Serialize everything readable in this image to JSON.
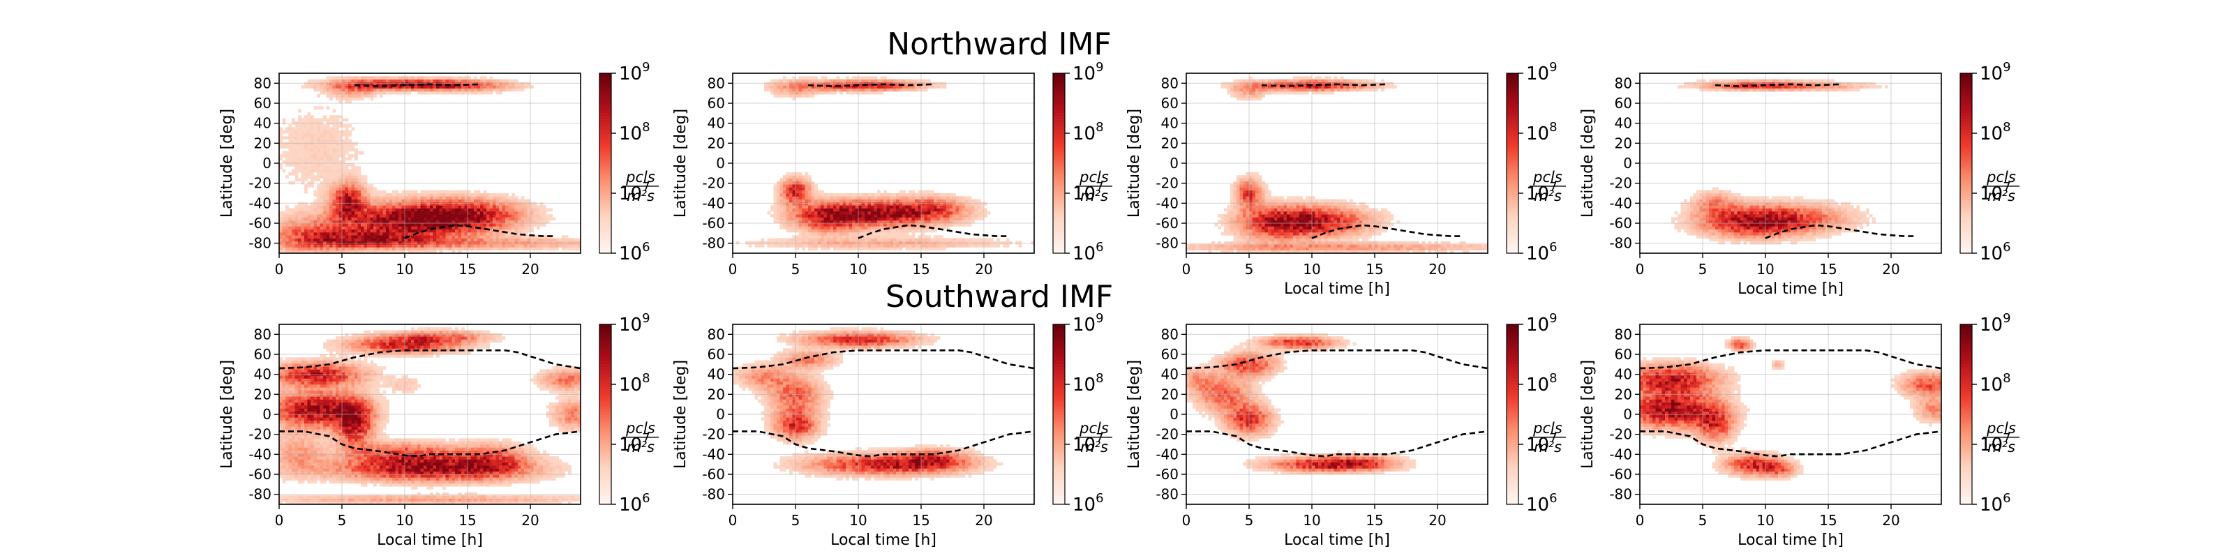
{
  "figure": {
    "row_titles": [
      "Northward IMF",
      "Southward IMF"
    ]
  },
  "chart_data": {
    "type": "heatmap",
    "panel_grid": [
      2,
      4
    ],
    "xlabel": "Local time [h]",
    "ylabel": "Latitude [deg]",
    "xlim": [
      0,
      24
    ],
    "ylim": [
      -90,
      90
    ],
    "xticks": [
      0,
      5,
      10,
      15,
      20
    ],
    "yticks": [
      -80,
      -60,
      -40,
      -20,
      0,
      20,
      40,
      60,
      80
    ],
    "xlabel_shown": [
      [
        false,
        false,
        true,
        true
      ],
      [
        true,
        true,
        true,
        true
      ]
    ],
    "grid": true,
    "colormap": "Reds",
    "colorbar": {
      "scale": "log",
      "range": [
        1000000,
        1000000000
      ],
      "tick_labels": [
        {
          "base": "10",
          "exp": "6"
        },
        {
          "base": "10",
          "exp": "7"
        },
        {
          "base": "10",
          "exp": "8"
        },
        {
          "base": "10",
          "exp": "9"
        }
      ],
      "unit_numerator": "pcls",
      "unit_denominator": "m²s"
    },
    "boundaries": {
      "north_cusp": [
        [
          6,
          78
        ],
        [
          8,
          77
        ],
        [
          10,
          78
        ],
        [
          12,
          79
        ],
        [
          14,
          78
        ],
        [
          16,
          79
        ]
      ],
      "south_cusp": [
        [
          10,
          -75
        ],
        [
          11,
          -70
        ],
        [
          12,
          -66
        ],
        [
          14,
          -62
        ],
        [
          15,
          -63
        ],
        [
          17,
          -67
        ],
        [
          19,
          -71
        ],
        [
          21,
          -73
        ],
        [
          22,
          -73
        ]
      ],
      "north_boundary": [
        [
          0,
          46
        ],
        [
          2,
          47
        ],
        [
          4,
          50
        ],
        [
          6,
          57
        ],
        [
          8,
          62
        ],
        [
          10,
          64
        ],
        [
          12,
          64
        ],
        [
          14,
          64
        ],
        [
          16,
          64
        ],
        [
          18,
          64
        ],
        [
          19,
          62
        ],
        [
          20,
          58
        ],
        [
          22,
          50
        ],
        [
          24,
          46
        ]
      ],
      "south_boundary": [
        [
          0,
          -17
        ],
        [
          2,
          -17
        ],
        [
          4,
          -22
        ],
        [
          5,
          -30
        ],
        [
          6,
          -34
        ],
        [
          8,
          -37
        ],
        [
          10,
          -41
        ],
        [
          11,
          -42
        ],
        [
          12,
          -40
        ],
        [
          14,
          -40
        ],
        [
          16,
          -40
        ],
        [
          18,
          -36
        ],
        [
          19,
          -32
        ],
        [
          20,
          -28
        ],
        [
          21,
          -24
        ],
        [
          22,
          -20
        ],
        [
          24,
          -17
        ]
      ]
    },
    "panels": [
      {
        "row": 0,
        "col": 0,
        "boundary_set": "cusp",
        "blobs": [
          {
            "lt": 10.5,
            "lat": 79,
            "slt": 3.5,
            "slat": 3.5,
            "amp": 0.9
          },
          {
            "lt": 6,
            "lat": 75,
            "slt": 1.5,
            "slat": 6,
            "amp": 0.35
          },
          {
            "lt": 15,
            "lat": 77,
            "slt": 3,
            "slat": 4,
            "amp": 0.3
          },
          {
            "lt": 11,
            "lat": -57,
            "slt": 4,
            "slat": 12,
            "amp": 1.0
          },
          {
            "lt": 5.5,
            "lat": -38,
            "slt": 0.9,
            "slat": 12,
            "amp": 0.8
          },
          {
            "lt": 7,
            "lat": -75,
            "slt": 3,
            "slat": 6,
            "amp": 0.6
          },
          {
            "lt": 15,
            "lat": -50,
            "slt": 3,
            "slat": 10,
            "amp": 0.55
          },
          {
            "lt": 14,
            "lat": -80,
            "slt": 9,
            "slat": 4,
            "amp": 0.35
          },
          {
            "lt": 2.5,
            "lat": -72,
            "slt": 2.5,
            "slat": 12,
            "amp": 0.45
          },
          {
            "lt": 3,
            "lat": 15,
            "slt": 3,
            "slat": 35,
            "amp": 0.12
          }
        ]
      },
      {
        "row": 0,
        "col": 1,
        "boundary_set": "cusp",
        "blobs": [
          {
            "lt": 10.5,
            "lat": 78,
            "slt": 3,
            "slat": 3.5,
            "amp": 0.8
          },
          {
            "lt": 5,
            "lat": 75,
            "slt": 1.5,
            "slat": 6,
            "amp": 0.3
          },
          {
            "lt": 11.5,
            "lat": -50,
            "slt": 3.5,
            "slat": 9,
            "amp": 0.95
          },
          {
            "lt": 5,
            "lat": -28,
            "slt": 0.8,
            "slat": 9,
            "amp": 0.75
          },
          {
            "lt": 7.5,
            "lat": -55,
            "slt": 1.8,
            "slat": 10,
            "amp": 0.55
          },
          {
            "lt": 12,
            "lat": -80,
            "slt": 7,
            "slat": 4,
            "amp": 0.25
          },
          {
            "lt": 16,
            "lat": -45,
            "slt": 2,
            "slat": 8,
            "amp": 0.4
          }
        ]
      },
      {
        "row": 0,
        "col": 2,
        "boundary_set": "cusp",
        "blobs": [
          {
            "lt": 10,
            "lat": 78,
            "slt": 3,
            "slat": 3.5,
            "amp": 0.8
          },
          {
            "lt": 5,
            "lat": 73,
            "slt": 1,
            "slat": 6,
            "amp": 0.3
          },
          {
            "lt": 10,
            "lat": -58,
            "slt": 3,
            "slat": 10,
            "amp": 0.85
          },
          {
            "lt": 5,
            "lat": -30,
            "slt": 0.7,
            "slat": 10,
            "amp": 0.65
          },
          {
            "lt": 7,
            "lat": -60,
            "slt": 2,
            "slat": 12,
            "amp": 0.45
          },
          {
            "lt": 12,
            "lat": -84,
            "slt": 9,
            "slat": 3,
            "amp": 0.35
          }
        ]
      },
      {
        "row": 0,
        "col": 3,
        "boundary_set": "cusp",
        "blobs": [
          {
            "lt": 9.5,
            "lat": 78,
            "slt": 3,
            "slat": 3,
            "amp": 0.7
          },
          {
            "lt": 15,
            "lat": 77,
            "slt": 3,
            "slat": 3,
            "amp": 0.2
          },
          {
            "lt": 9,
            "lat": -58,
            "slt": 2.8,
            "slat": 10,
            "amp": 0.9
          },
          {
            "lt": 6,
            "lat": -40,
            "slt": 1.2,
            "slat": 8,
            "amp": 0.35
          },
          {
            "lt": 13,
            "lat": -55,
            "slt": 3,
            "slat": 10,
            "amp": 0.35
          }
        ]
      },
      {
        "row": 1,
        "col": 0,
        "boundary_set": "oval",
        "blobs": [
          {
            "lt": 3,
            "lat": 40,
            "slt": 2.5,
            "slat": 8,
            "amp": 0.8
          },
          {
            "lt": 3,
            "lat": 5,
            "slt": 2.5,
            "slat": 12,
            "amp": 0.95
          },
          {
            "lt": 6,
            "lat": -10,
            "slt": 1,
            "slat": 15,
            "amp": 0.8
          },
          {
            "lt": 10,
            "lat": 70,
            "slt": 3,
            "slat": 6,
            "amp": 0.75
          },
          {
            "lt": 13,
            "lat": 78,
            "slt": 2.5,
            "slat": 4,
            "amp": 0.45
          },
          {
            "lt": 10,
            "lat": -40,
            "slt": 3,
            "slat": 8,
            "amp": 0.6
          },
          {
            "lt": 12,
            "lat": -55,
            "slt": 5,
            "slat": 8,
            "amp": 0.85
          },
          {
            "lt": 17,
            "lat": -45,
            "slt": 2,
            "slat": 10,
            "amp": 0.55
          },
          {
            "lt": 23,
            "lat": 35,
            "slt": 1.5,
            "slat": 7,
            "amp": 0.45
          },
          {
            "lt": 23.5,
            "lat": 0,
            "slt": 1.2,
            "slat": 10,
            "amp": 0.4
          },
          {
            "lt": 12,
            "lat": -85,
            "slt": 9,
            "slat": 3,
            "amp": 0.3
          },
          {
            "lt": 10,
            "lat": 30,
            "slt": 1,
            "slat": 6,
            "amp": 0.15
          },
          {
            "lt": 1.5,
            "lat": -40,
            "slt": 1.5,
            "slat": 15,
            "amp": 0.3
          }
        ]
      },
      {
        "row": 1,
        "col": 1,
        "boundary_set": "oval",
        "blobs": [
          {
            "lt": 10,
            "lat": 75,
            "slt": 3,
            "slat": 5,
            "amp": 0.75
          },
          {
            "lt": 5,
            "lat": 20,
            "slt": 1.5,
            "slat": 12,
            "amp": 0.5
          },
          {
            "lt": 5,
            "lat": -10,
            "slt": 1.2,
            "slat": 10,
            "amp": 0.7
          },
          {
            "lt": 12,
            "lat": -50,
            "slt": 4,
            "slat": 7,
            "amp": 0.75
          },
          {
            "lt": 16,
            "lat": -45,
            "slt": 2,
            "slat": 7,
            "amp": 0.5
          },
          {
            "lt": 2.5,
            "lat": 38,
            "slt": 1.5,
            "slat": 8,
            "amp": 0.35
          },
          {
            "lt": 6,
            "lat": 55,
            "slt": 1.5,
            "slat": 6,
            "amp": 0.4
          }
        ]
      },
      {
        "row": 1,
        "col": 2,
        "boundary_set": "oval",
        "blobs": [
          {
            "lt": 9,
            "lat": 72,
            "slt": 2,
            "slat": 4,
            "amp": 0.7
          },
          {
            "lt": 5,
            "lat": 50,
            "slt": 1.5,
            "slat": 8,
            "amp": 0.6
          },
          {
            "lt": 3,
            "lat": 20,
            "slt": 1.5,
            "slat": 12,
            "amp": 0.5
          },
          {
            "lt": 5,
            "lat": -5,
            "slt": 1.2,
            "slat": 10,
            "amp": 0.7
          },
          {
            "lt": 11,
            "lat": -50,
            "slt": 3,
            "slat": 5,
            "amp": 0.75
          },
          {
            "lt": 14,
            "lat": -48,
            "slt": 2,
            "slat": 5,
            "amp": 0.4
          },
          {
            "lt": 0.8,
            "lat": 35,
            "slt": 1,
            "slat": 8,
            "amp": 0.3
          }
        ]
      },
      {
        "row": 1,
        "col": 3,
        "boundary_set": "oval",
        "blobs": [
          {
            "lt": 2.5,
            "lat": 35,
            "slt": 2.5,
            "slat": 10,
            "amp": 0.8
          },
          {
            "lt": 2.5,
            "lat": 5,
            "slt": 2.5,
            "slat": 12,
            "amp": 0.95
          },
          {
            "lt": 6,
            "lat": -10,
            "slt": 1,
            "slat": 12,
            "amp": 0.6
          },
          {
            "lt": 9,
            "lat": -50,
            "slt": 1.5,
            "slat": 7,
            "amp": 0.7
          },
          {
            "lt": 11,
            "lat": -55,
            "slt": 1,
            "slat": 5,
            "amp": 0.45
          },
          {
            "lt": 8,
            "lat": 70,
            "slt": 0.6,
            "slat": 4,
            "amp": 0.6
          },
          {
            "lt": 23,
            "lat": 30,
            "slt": 1.5,
            "slat": 8,
            "amp": 0.55
          },
          {
            "lt": 23.5,
            "lat": 5,
            "slt": 1,
            "slat": 8,
            "amp": 0.4
          },
          {
            "lt": 11,
            "lat": 50,
            "slt": 0.4,
            "slat": 3,
            "amp": 0.25
          }
        ]
      }
    ]
  }
}
